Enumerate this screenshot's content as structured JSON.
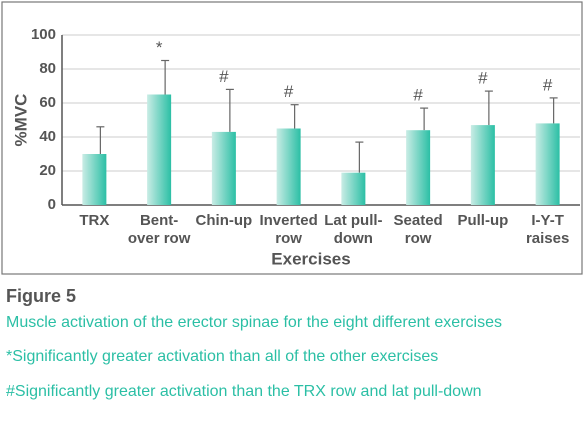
{
  "chart_data": {
    "type": "bar",
    "x_label": "Exercises",
    "y_label": "%MVC",
    "categories": [
      [
        "TRX"
      ],
      [
        "Bent-",
        "over row"
      ],
      [
        "Chin-up"
      ],
      [
        "Inverted",
        "row"
      ],
      [
        "Lat pull-",
        "down"
      ],
      [
        "Seated",
        "row"
      ],
      [
        "Pull-up"
      ],
      [
        "I-Y-T",
        "raises"
      ]
    ],
    "values": [
      30,
      65,
      43,
      45,
      19,
      44,
      47,
      48
    ],
    "errors": [
      16,
      20,
      25,
      14,
      18,
      13,
      20,
      15
    ],
    "markers": [
      null,
      "*",
      "#",
      "#",
      null,
      "#",
      "#",
      "#"
    ],
    "color": "#2bbfa5",
    "ylim": [
      0,
      100
    ],
    "yticks": [
      0,
      20,
      40,
      60,
      80,
      100
    ],
    "grid": true
  },
  "caption": {
    "figure": "Figure 5",
    "lines": [
      "Muscle activation of the erector spinae for the eight different exercises",
      "*Significantly greater activation than all of the other exercises",
      "#Significantly greater activation than the TRX row and lat pull-down"
    ]
  }
}
